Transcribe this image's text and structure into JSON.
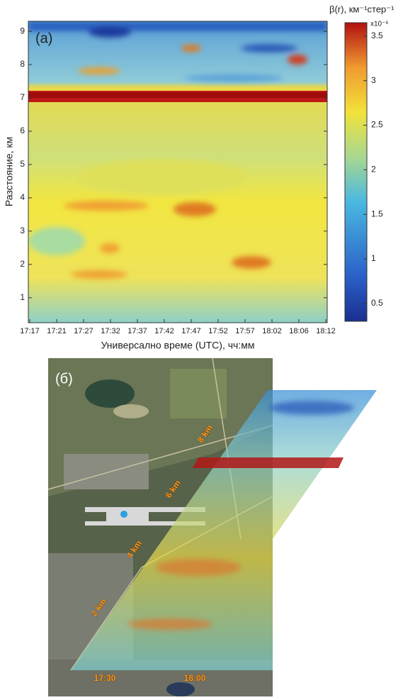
{
  "chart_data": {
    "type": "heatmap",
    "annotation": "(а)",
    "x_label": "Универсално време (UTC), чч:мм",
    "y_label": "Разстояние, км",
    "categories": [
      "17:17",
      "17:21",
      "17:27",
      "17:32",
      "17:37",
      "17:42",
      "17:47",
      "17:52",
      "17:57",
      "18:02",
      "18:06",
      "18:12"
    ],
    "ylim": [
      0.25,
      9.3
    ],
    "yticks": [
      1,
      2,
      3,
      4,
      5,
      6,
      7,
      8,
      9
    ],
    "colorbar": {
      "label": "β(r), км⁻¹стер⁻¹",
      "multiplier": "x10⁻⁶",
      "lim": [
        0.3,
        3.65
      ],
      "ticks": [
        0.5,
        1,
        1.5,
        2,
        2.5,
        3,
        3.5
      ],
      "colormap": "jet"
    }
  },
  "map": {
    "panel_label": "(б)",
    "distance_labels": [
      "8 km",
      "6 km",
      "4 km",
      "2 km"
    ],
    "time_labels": [
      "17:30",
      "18:00"
    ]
  }
}
